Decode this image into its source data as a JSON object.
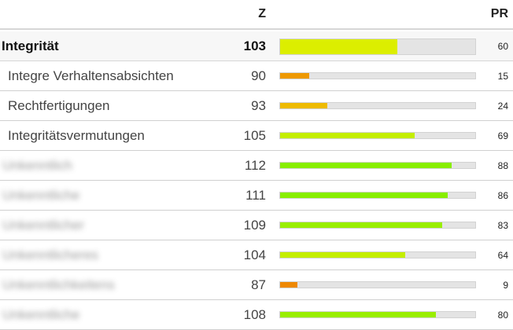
{
  "header": {
    "z_label": "Z",
    "pr_label": "PR"
  },
  "rows": [
    {
      "label": "Integrität",
      "z": "103",
      "pr": 60,
      "color": "#dcee00",
      "main": true
    },
    {
      "label": "Integre Verhaltensabsichten",
      "z": "90",
      "pr": 15,
      "color": "#ee9900"
    },
    {
      "label": "Rechtfertigungen",
      "z": "93",
      "pr": 24,
      "color": "#eebb00"
    },
    {
      "label": "Integritätsvermutungen",
      "z": "105",
      "pr": 69,
      "color": "#c4ee00"
    },
    {
      "label": "Unkenntlich",
      "z": "112",
      "pr": 88,
      "color": "#88ee00",
      "blurred": true
    },
    {
      "label": "Unkenntliche",
      "z": "111",
      "pr": 86,
      "color": "#88ee00",
      "blurred": true
    },
    {
      "label": "Unkenntlicher",
      "z": "109",
      "pr": 83,
      "color": "#99ee00",
      "blurred": true
    },
    {
      "label": "Unkenntlicheres",
      "z": "104",
      "pr": 64,
      "color": "#c4ee00",
      "blurred": true
    },
    {
      "label": "Unkenntlichkeitens",
      "z": "87",
      "pr": 9,
      "color": "#ee8800",
      "blurred": true
    },
    {
      "label": "Unkenntliche",
      "z": "108",
      "pr": 80,
      "color": "#99ee00",
      "blurred": true
    }
  ]
}
